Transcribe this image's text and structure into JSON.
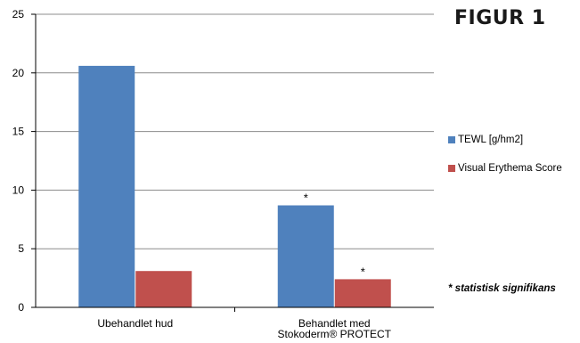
{
  "figure_label": "FIGUR 1",
  "footnote": "* statistisk signifikans",
  "colors": {
    "tewl": "#4f81bd",
    "erythema": "#c0504d",
    "grid": "#8c8c8c",
    "axis": "#000000"
  },
  "chart_data": {
    "type": "bar",
    "title": "",
    "xlabel": "",
    "ylabel": "",
    "ylim": [
      0,
      25
    ],
    "yticks": [
      "0",
      "5",
      "10",
      "15",
      "20",
      "25"
    ],
    "grid": true,
    "legend_placement": "right",
    "categories": [
      {
        "lines": [
          "Ubehandlet hud"
        ]
      },
      {
        "lines": [
          "Behandlet med",
          "Stokoderm® PROTECT"
        ]
      }
    ],
    "series": [
      {
        "name": "TEWL [g/hm2]",
        "values": [
          20.6,
          8.7
        ],
        "marks": [
          "",
          "*"
        ]
      },
      {
        "name": "Visual Erythema Score",
        "values": [
          3.1,
          2.4
        ],
        "marks": [
          "",
          "*"
        ]
      }
    ]
  }
}
